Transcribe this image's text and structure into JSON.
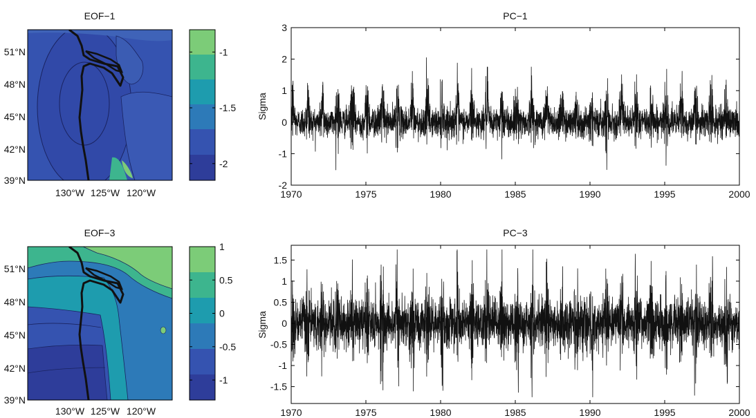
{
  "chart_data": [
    {
      "type": "heatmap",
      "title": "EOF−1",
      "lat_ticks": [
        "51°N",
        "48°N",
        "45°N",
        "42°N",
        "39°N"
      ],
      "lon_ticks": [
        "130°W",
        "125°W",
        "120°W"
      ],
      "colorbar_ticks": [
        -1,
        -1.5,
        -2
      ],
      "colorbar_range": [
        -2.15,
        -0.8
      ],
      "colormap": [
        "#2e3d9a",
        "#3553b0",
        "#2d7ab8",
        "#1e9cae",
        "#3db58e",
        "#7ccc78"
      ]
    },
    {
      "type": "line",
      "title": "PC−1",
      "ylabel": "Sigma",
      "xlim": [
        1970,
        2000
      ],
      "ylim": [
        -2,
        3
      ],
      "xticks": [
        1970,
        1975,
        1980,
        1985,
        1990,
        1995,
        2000
      ],
      "yticks": [
        3,
        2,
        1,
        0,
        -1,
        -2
      ],
      "series_color": "#111111"
    },
    {
      "type": "heatmap",
      "title": "EOF−3",
      "lat_ticks": [
        "51°N",
        "48°N",
        "45°N",
        "42°N",
        "39°N"
      ],
      "lon_ticks": [
        "130°W",
        "125°W",
        "120°W"
      ],
      "colorbar_ticks": [
        1,
        0.5,
        0,
        -0.5,
        -1
      ],
      "colorbar_range": [
        -1.3,
        1.0
      ],
      "colormap": [
        "#2e3d9a",
        "#3553b0",
        "#2d7ab8",
        "#1e9cae",
        "#3db58e",
        "#7ccc78"
      ]
    },
    {
      "type": "line",
      "title": "PC−3",
      "ylabel": "Sigma",
      "xlim": [
        1970,
        2000
      ],
      "ylim": [
        -1.9,
        1.85
      ],
      "xticks": [
        1970,
        1975,
        1980,
        1985,
        1990,
        1995,
        2000
      ],
      "yticks": [
        1.5,
        1,
        0.5,
        0,
        -0.5,
        -1,
        -1.5
      ],
      "series_color": "#111111"
    }
  ]
}
